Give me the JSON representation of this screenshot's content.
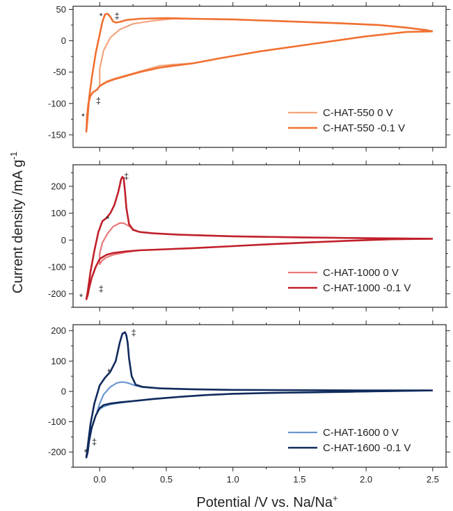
{
  "chart_data": {
    "type": "line",
    "ylabel": "Current density /mA g",
    "ylabel_superscript": "-1",
    "xlabel": "Potential /V vs. Na/Na",
    "xlabel_superscript": "+",
    "xlim": [
      -0.2,
      2.6
    ],
    "xticks": [
      0.0,
      0.5,
      1.0,
      1.5,
      2.0,
      2.5
    ],
    "xtick_labels": [
      "0.0",
      "0.5",
      "1.0",
      "1.5",
      "2.0",
      "2.5"
    ],
    "grid": false,
    "panels": [
      {
        "ylim": [
          -170,
          55
        ],
        "yticks": [
          50,
          0,
          -50,
          -100,
          -150
        ],
        "ytick_labels": [
          "50",
          "0",
          "-50",
          "-100",
          "-150"
        ],
        "legend_position": "bottom-right",
        "series": [
          {
            "name": "C-HAT-550 0 V",
            "color": "#f4a47c",
            "x": [
              2.5,
              2.3,
              2.0,
              1.6,
              1.2,
              0.9,
              0.7,
              0.55,
              0.45,
              0.3,
              0.2,
              0.1,
              0.05,
              0.02,
              0.0,
              0.0,
              0.03,
              0.08,
              0.15,
              0.25,
              0.4,
              0.55,
              0.7,
              1.0,
              1.4,
              1.8,
              2.1,
              2.3,
              2.45,
              2.5
            ],
            "y": [
              15,
              14,
              7,
              -5,
              -17,
              -28,
              -36,
              -38,
              -40,
              -49,
              -55,
              -61,
              -65,
              -69,
              -72,
              -45,
              -15,
              5,
              18,
              27,
              32,
              35,
              35,
              34,
              31,
              28,
              25,
              21,
              17,
              15
            ]
          },
          {
            "name": "C-HAT-550 -0.1 V",
            "color": "#f07030",
            "x": [
              2.5,
              2.3,
              2.0,
              1.6,
              1.2,
              0.9,
              0.7,
              0.55,
              0.45,
              0.3,
              0.2,
              0.1,
              0.05,
              0.0,
              -0.02,
              -0.05,
              -0.07,
              -0.085,
              -0.095,
              -0.1,
              -0.09,
              -0.08,
              -0.06,
              -0.03,
              0.0,
              0.02,
              0.04,
              0.06,
              0.08,
              0.1,
              0.12,
              0.15,
              0.2,
              0.3,
              0.5,
              0.7,
              1.0,
              1.4,
              1.8,
              2.1,
              2.3,
              2.45,
              2.5
            ],
            "y": [
              15,
              14,
              7,
              -5,
              -17,
              -28,
              -36,
              -40,
              -43,
              -50,
              -56,
              -62,
              -66,
              -72,
              -78,
              -82,
              -88,
              -100,
              -120,
              -145,
              -120,
              -92,
              -60,
              -20,
              10,
              30,
              42,
              43,
              38,
              31,
              29,
              30,
              33,
              35,
              36,
              35,
              34,
              31,
              28,
              25,
              21,
              17,
              15
            ]
          }
        ],
        "annotations": [
          {
            "text": "*",
            "x": 0.01,
            "y": 40
          },
          {
            "text": "‡",
            "x": 0.13,
            "y": 40
          },
          {
            "text": "‡",
            "x": -0.01,
            "y": -95
          },
          {
            "text": "*",
            "x": -0.125,
            "y": -120
          }
        ]
      },
      {
        "ylim": [
          -250,
          280
        ],
        "yticks": [
          200,
          100,
          0,
          -100,
          -200
        ],
        "ytick_labels": [
          "200",
          "100",
          "0",
          "-100",
          "-200"
        ],
        "legend_position": "bottom-right",
        "series": [
          {
            "name": "C-HAT-1000 0 V",
            "color": "#e87878",
            "x": [
              2.5,
              2.2,
              1.9,
              1.6,
              1.3,
              1.1,
              0.9,
              0.7,
              0.5,
              0.3,
              0.2,
              0.1,
              0.05,
              0.02,
              0.0,
              0.0,
              0.02,
              0.06,
              0.1,
              0.15,
              0.18,
              0.22,
              0.26,
              0.3,
              0.4,
              0.6,
              1.0,
              1.5,
              2.0,
              2.5
            ],
            "y": [
              5,
              3,
              -2,
              -8,
              -15,
              -20,
              -25,
              -30,
              -34,
              -38,
              -45,
              -55,
              -65,
              -75,
              -90,
              -50,
              -10,
              25,
              50,
              63,
              63,
              52,
              38,
              30,
              25,
              20,
              14,
              10,
              7,
              5
            ]
          },
          {
            "name": "C-HAT-1000 -0.1 V",
            "color": "#c0202a",
            "x": [
              2.5,
              2.2,
              1.9,
              1.6,
              1.3,
              1.1,
              0.9,
              0.7,
              0.5,
              0.3,
              0.2,
              0.1,
              0.05,
              0.0,
              -0.03,
              -0.06,
              -0.08,
              -0.09,
              -0.1,
              -0.09,
              -0.07,
              -0.04,
              -0.01,
              0.02,
              0.05,
              0.08,
              0.11,
              0.14,
              0.16,
              0.17,
              0.18,
              0.19,
              0.2,
              0.22,
              0.25,
              0.3,
              0.4,
              0.6,
              1.0,
              1.5,
              2.0,
              2.5
            ],
            "y": [
              5,
              3,
              -2,
              -8,
              -15,
              -20,
              -25,
              -30,
              -34,
              -38,
              -42,
              -48,
              -55,
              -70,
              -100,
              -140,
              -180,
              -205,
              -220,
              -190,
              -120,
              -40,
              30,
              70,
              82,
              100,
              130,
              180,
              225,
              235,
              230,
              180,
              120,
              60,
              38,
              30,
              25,
              20,
              14,
              10,
              7,
              5
            ]
          }
        ],
        "annotations": [
          {
            "text": "*",
            "x": 0.06,
            "y": 80
          },
          {
            "text": "‡",
            "x": 0.2,
            "y": 238
          },
          {
            "text": "‡",
            "x": 0.01,
            "y": -180
          },
          {
            "text": "*",
            "x": -0.14,
            "y": -210
          }
        ]
      },
      {
        "ylim": [
          -250,
          220
        ],
        "yticks": [
          200,
          100,
          0,
          -100,
          -200
        ],
        "ytick_labels": [
          "200",
          "100",
          "0",
          "-100",
          "-200"
        ],
        "legend_position": "bottom-right",
        "series": [
          {
            "name": "C-HAT-1600 0 V",
            "color": "#6a96cf",
            "x": [
              2.5,
              2.2,
              1.9,
              1.6,
              1.3,
              1.0,
              0.8,
              0.6,
              0.4,
              0.25,
              0.15,
              0.08,
              0.03,
              0.0,
              -0.02,
              0.0,
              0.03,
              0.08,
              0.13,
              0.17,
              0.21,
              0.26,
              0.32,
              0.45,
              0.7,
              1.0,
              1.5,
              2.0,
              2.5
            ],
            "y": [
              3,
              1,
              -1,
              -3,
              -5,
              -8,
              -12,
              -18,
              -25,
              -32,
              -38,
              -43,
              -50,
              -58,
              -66,
              -40,
              -10,
              15,
              28,
              31,
              28,
              20,
              14,
              10,
              7,
              5,
              4,
              3,
              3
            ]
          },
          {
            "name": "C-HAT-1600 -0.1 V",
            "color": "#102a5c",
            "x": [
              2.5,
              2.2,
              1.9,
              1.6,
              1.3,
              1.0,
              0.8,
              0.6,
              0.4,
              0.25,
              0.15,
              0.08,
              0.03,
              0.0,
              -0.03,
              -0.06,
              -0.08,
              -0.09,
              -0.1,
              -0.09,
              -0.07,
              -0.04,
              0.0,
              0.04,
              0.08,
              0.12,
              0.15,
              0.17,
              0.19,
              0.2,
              0.21,
              0.22,
              0.24,
              0.27,
              0.32,
              0.45,
              0.7,
              1.0,
              1.5,
              2.0,
              2.5
            ],
            "y": [
              3,
              1,
              -1,
              -3,
              -5,
              -8,
              -12,
              -18,
              -25,
              -32,
              -36,
              -40,
              -45,
              -55,
              -80,
              -120,
              -165,
              -200,
              -218,
              -180,
              -110,
              -40,
              20,
              45,
              65,
              100,
              160,
              190,
              195,
              185,
              160,
              110,
              50,
              22,
              15,
              10,
              7,
              5,
              4,
              3,
              3
            ]
          }
        ],
        "annotations": [
          {
            "text": "*",
            "x": 0.07,
            "y": 65
          },
          {
            "text": "‡",
            "x": 0.255,
            "y": 195
          },
          {
            "text": "‡",
            "x": -0.04,
            "y": -165
          },
          {
            "text": "*",
            "x": -0.105,
            "y": -200
          }
        ]
      }
    ]
  }
}
